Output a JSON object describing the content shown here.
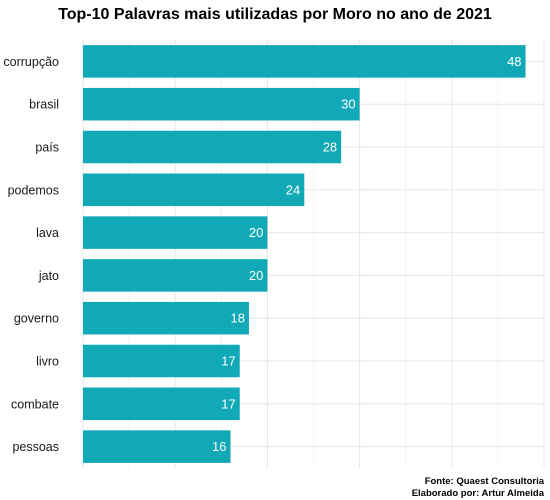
{
  "chart_data": {
    "type": "bar",
    "orientation": "horizontal",
    "title": "Top-10 Palavras mais utilizadas por Moro no ano de 2021",
    "xlabel": "",
    "ylabel": "",
    "categories": [
      "corrupção",
      "brasil",
      "país",
      "podemos",
      "lava",
      "jato",
      "governo",
      "livro",
      "combate",
      "pessoas"
    ],
    "values": [
      48,
      30,
      28,
      24,
      20,
      20,
      18,
      17,
      17,
      16
    ],
    "xlim": [
      0,
      50
    ],
    "grid": true,
    "bar_color": "#12A9B7",
    "caption_lines": [
      "Fonte: Quaest Consultoria",
      "Elaborado por: Artur Almeida"
    ]
  }
}
